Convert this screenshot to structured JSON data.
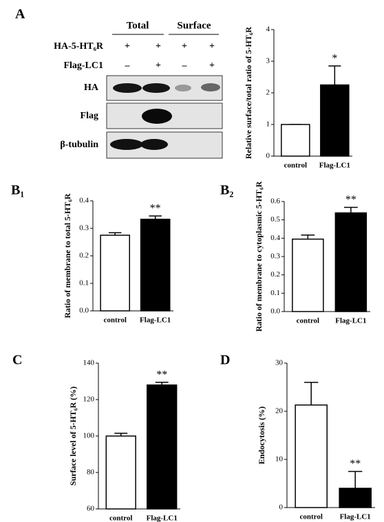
{
  "blot": {
    "groups": [
      "Total",
      "Surface"
    ],
    "rows": [
      {
        "label": "HA-5-HT₆R",
        "signs": [
          "+",
          "+",
          "+",
          "+"
        ]
      },
      {
        "label": "Flag-LC1",
        "signs": [
          "–",
          "+",
          "–",
          "+"
        ]
      }
    ],
    "bands": [
      "HA",
      "Flag",
      "β-tubulin"
    ]
  },
  "chart_data": [
    {
      "type": "bar",
      "panel": "A",
      "ylabel": "Relative surface/total ratio of 5-HT₆R",
      "categories": [
        "control",
        "Flag-LC1"
      ],
      "values": [
        1.0,
        2.25
      ],
      "errors": [
        0,
        0.6
      ],
      "annotations": [
        null,
        "*"
      ],
      "colors": [
        "#ffffff",
        "#000000"
      ],
      "ylim": [
        0,
        4
      ],
      "yticks": [
        0,
        1,
        2,
        3,
        4
      ]
    },
    {
      "type": "bar",
      "panel": "B₁",
      "ylabel": "Ratio of membrane to total 5-HT₆R",
      "categories": [
        "control",
        "Flag-LC1"
      ],
      "values": [
        0.275,
        0.333
      ],
      "errors": [
        0.009,
        0.012
      ],
      "annotations": [
        null,
        "**"
      ],
      "colors": [
        "#ffffff",
        "#000000"
      ],
      "ylim": [
        0,
        0.4
      ],
      "yticks": [
        {
          "value": 0,
          "label": "0.0"
        },
        0.1,
        0.2,
        0.3,
        0.4
      ]
    },
    {
      "type": "bar",
      "panel": "B₂",
      "ylabel": "Ratio of membrane to cytoplasmic 5-HT₆R",
      "categories": [
        "control",
        "Flag-LC1"
      ],
      "values": [
        0.395,
        0.538
      ],
      "errors": [
        0.022,
        0.03
      ],
      "annotations": [
        null,
        "**"
      ],
      "colors": [
        "#ffffff",
        "#000000"
      ],
      "ylim": [
        0,
        0.6
      ],
      "yticks": [
        {
          "value": 0,
          "label": "0.0"
        },
        0.1,
        0.2,
        0.3,
        0.4,
        0.5,
        0.6
      ]
    },
    {
      "type": "bar",
      "panel": "C",
      "ylabel": "Surface level of 5-HT₆R (%)",
      "categories": [
        "control",
        "Flag-LC1"
      ],
      "values": [
        100,
        128
      ],
      "errors": [
        1.5,
        1.5
      ],
      "annotations": [
        null,
        "**"
      ],
      "colors": [
        "#ffffff",
        "#000000"
      ],
      "ylim": [
        60,
        140
      ],
      "yticks": [
        60,
        80,
        100,
        120,
        140
      ]
    },
    {
      "type": "bar",
      "panel": "D",
      "ylabel": "Endocytosis (%)",
      "categories": [
        "control",
        "Flag-LC1"
      ],
      "values": [
        21.3,
        4.0
      ],
      "errors": [
        4.7,
        3.5
      ],
      "annotations": [
        null,
        "**"
      ],
      "colors": [
        "#ffffff",
        "#000000"
      ],
      "ylim": [
        0,
        30
      ],
      "yticks": [
        0,
        10,
        20,
        30
      ]
    }
  ]
}
